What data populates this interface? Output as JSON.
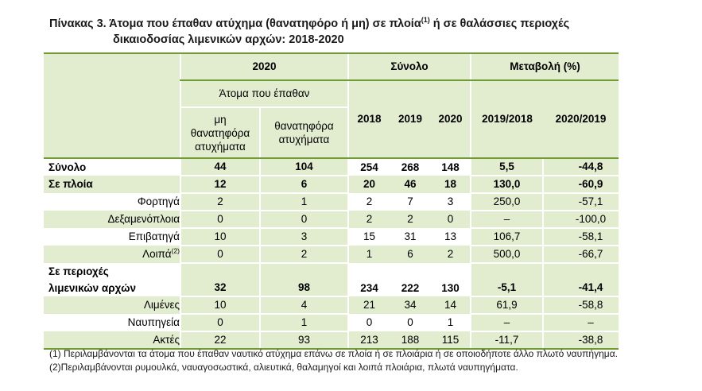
{
  "title": {
    "line1": "Πίνακας 3. Άτομα που έπαθαν ατύχημα (θανατηφόρο ή μη) σε πλοία",
    "sup": "(1)",
    "line1_end": "  ή σε θαλάσσιες περιοχές",
    "line2": "δικαιοδοσίας λιμενικών αρχών: 2018-2020"
  },
  "header": {
    "year2020": "2020",
    "total": "Σύνολο",
    "change": "Μεταβολή (%)",
    "victims": "Άτομα που έπαθαν",
    "nonfatal": "μη θανατηφόρα ατυχήματα",
    "fatal": "θανατηφόρα ατυχήματα",
    "y2018": "2018",
    "y2019": "2019",
    "y2020": "2020",
    "ch1": "2019/2018",
    "ch2": "2020/2019"
  },
  "rows": [
    {
      "label": "Σύνολο",
      "nf": "44",
      "f": "104",
      "t18": "254",
      "t19": "268",
      "t20": "148",
      "c1": "5,5",
      "c2": "-44,8"
    },
    {
      "label": "Σε πλοία",
      "nf": "12",
      "f": "6",
      "t18": "20",
      "t19": "46",
      "t20": "18",
      "c1": "130,0",
      "c2": "-60,9"
    },
    {
      "label": "Φορτηγά",
      "nf": "2",
      "f": "1",
      "t18": "2",
      "t19": "7",
      "t20": "3",
      "c1": "250,0",
      "c2": "-57,1"
    },
    {
      "label": "Δεξαμενόπλοια",
      "nf": "0",
      "f": "0",
      "t18": "2",
      "t19": "2",
      "t20": "0",
      "c1": "–",
      "c2": "-100,0"
    },
    {
      "label": "Επιβατηγά",
      "nf": "10",
      "f": "3",
      "t18": "15",
      "t19": "31",
      "t20": "13",
      "c1": "106,7",
      "c2": "-58,1"
    },
    {
      "label": "Λοιπά",
      "sup": "(2)",
      "nf": "0",
      "f": "2",
      "t18": "1",
      "t19": "6",
      "t20": "2",
      "c1": "500,0",
      "c2": "-66,7"
    },
    {
      "label1": "Σε περιοχές",
      "label2": "λιμενικών αρχών",
      "nf": "32",
      "f": "98",
      "t18": "234",
      "t19": "222",
      "t20": "130",
      "c1": "-5,1",
      "c2": "-41,4"
    },
    {
      "label": "Λιμένες",
      "nf": "10",
      "f": "4",
      "t18": "21",
      "t19": "34",
      "t20": "14",
      "c1": "61,9",
      "c2": "-58,8"
    },
    {
      "label": "Ναυπηγεία",
      "nf": "0",
      "f": "1",
      "t18": "0",
      "t19": "0",
      "t20": "1",
      "c1": "–",
      "c2": "–"
    },
    {
      "label": "Ακτές",
      "nf": "22",
      "f": "93",
      "t18": "213",
      "t19": "188",
      "t20": "115",
      "c1": "-11,7",
      "c2": "-38,8"
    }
  ],
  "notes": {
    "n1": "(1) Περιλαμβάνονται τα άτομα που έπαθαν ναυτικό ατύχημα επάνω σε πλοία ή σε πλοιάρια ή σε οποιοδήποτε άλλο πλωτό ναυπήγημα.",
    "n2": "(2)Περιλαμβάνονται ρυμουλκά, ναυαγοσωστικά, αλιευτικά, θαλαμηγοί και λοιπά πλοιάρια, πλωτά ναυπηγήματα."
  }
}
